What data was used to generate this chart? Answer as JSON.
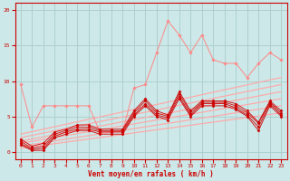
{
  "bg_color": "#cce8e8",
  "grid_color": "#aacccc",
  "xlabel": "Vent moyen/en rafales ( km/h )",
  "xlim": [
    -0.5,
    23.5
  ],
  "ylim": [
    -1,
    21
  ],
  "yticks": [
    0,
    5,
    10,
    15,
    20
  ],
  "xticks": [
    0,
    1,
    2,
    3,
    4,
    5,
    6,
    7,
    8,
    9,
    10,
    11,
    12,
    13,
    14,
    15,
    16,
    17,
    18,
    19,
    20,
    21,
    22,
    23
  ],
  "dark_red": "#cc0000",
  "light_red": "#ff8888",
  "trend_color": "#ffaaaa",
  "trend_lines": [
    [
      0.5,
      5.5
    ],
    [
      0.8,
      6.5
    ],
    [
      1.2,
      7.5
    ],
    [
      1.5,
      8.5
    ],
    [
      2.0,
      9.5
    ],
    [
      2.5,
      10.5
    ]
  ],
  "dark_lines": [
    [
      1.0,
      0.2,
      0.2,
      2.0,
      2.5,
      3.0,
      3.0,
      2.5,
      2.5,
      2.5,
      5.0,
      6.5,
      5.0,
      4.5,
      7.5,
      5.0,
      6.5,
      6.5,
      6.5,
      6.0,
      5.0,
      3.0,
      6.5,
      5.0
    ],
    [
      1.2,
      0.3,
      0.5,
      2.2,
      2.8,
      3.2,
      3.2,
      2.8,
      2.8,
      2.8,
      5.2,
      6.8,
      5.2,
      4.8,
      7.8,
      5.2,
      6.8,
      6.8,
      6.8,
      6.2,
      5.2,
      3.5,
      6.8,
      5.2
    ],
    [
      1.5,
      0.5,
      0.8,
      2.5,
      3.0,
      3.5,
      3.5,
      3.0,
      3.0,
      3.0,
      5.5,
      7.2,
      5.5,
      5.0,
      8.2,
      5.5,
      7.0,
      7.0,
      7.0,
      6.5,
      5.5,
      4.0,
      7.0,
      5.5
    ],
    [
      1.8,
      0.8,
      1.2,
      2.8,
      3.2,
      3.8,
      3.8,
      3.2,
      3.2,
      3.2,
      5.8,
      7.5,
      5.8,
      5.2,
      8.5,
      5.8,
      7.2,
      7.2,
      7.2,
      6.8,
      5.8,
      4.2,
      7.2,
      5.8
    ]
  ],
  "light_line": [
    9.5,
    3.5,
    6.5,
    6.5,
    6.5,
    6.5,
    6.5,
    2.8,
    2.8,
    2.8,
    9.0,
    9.5,
    14.0,
    18.5,
    16.5,
    14.0,
    16.5,
    13.0,
    12.5,
    12.5,
    10.5,
    12.5,
    14.0,
    13.0
  ]
}
